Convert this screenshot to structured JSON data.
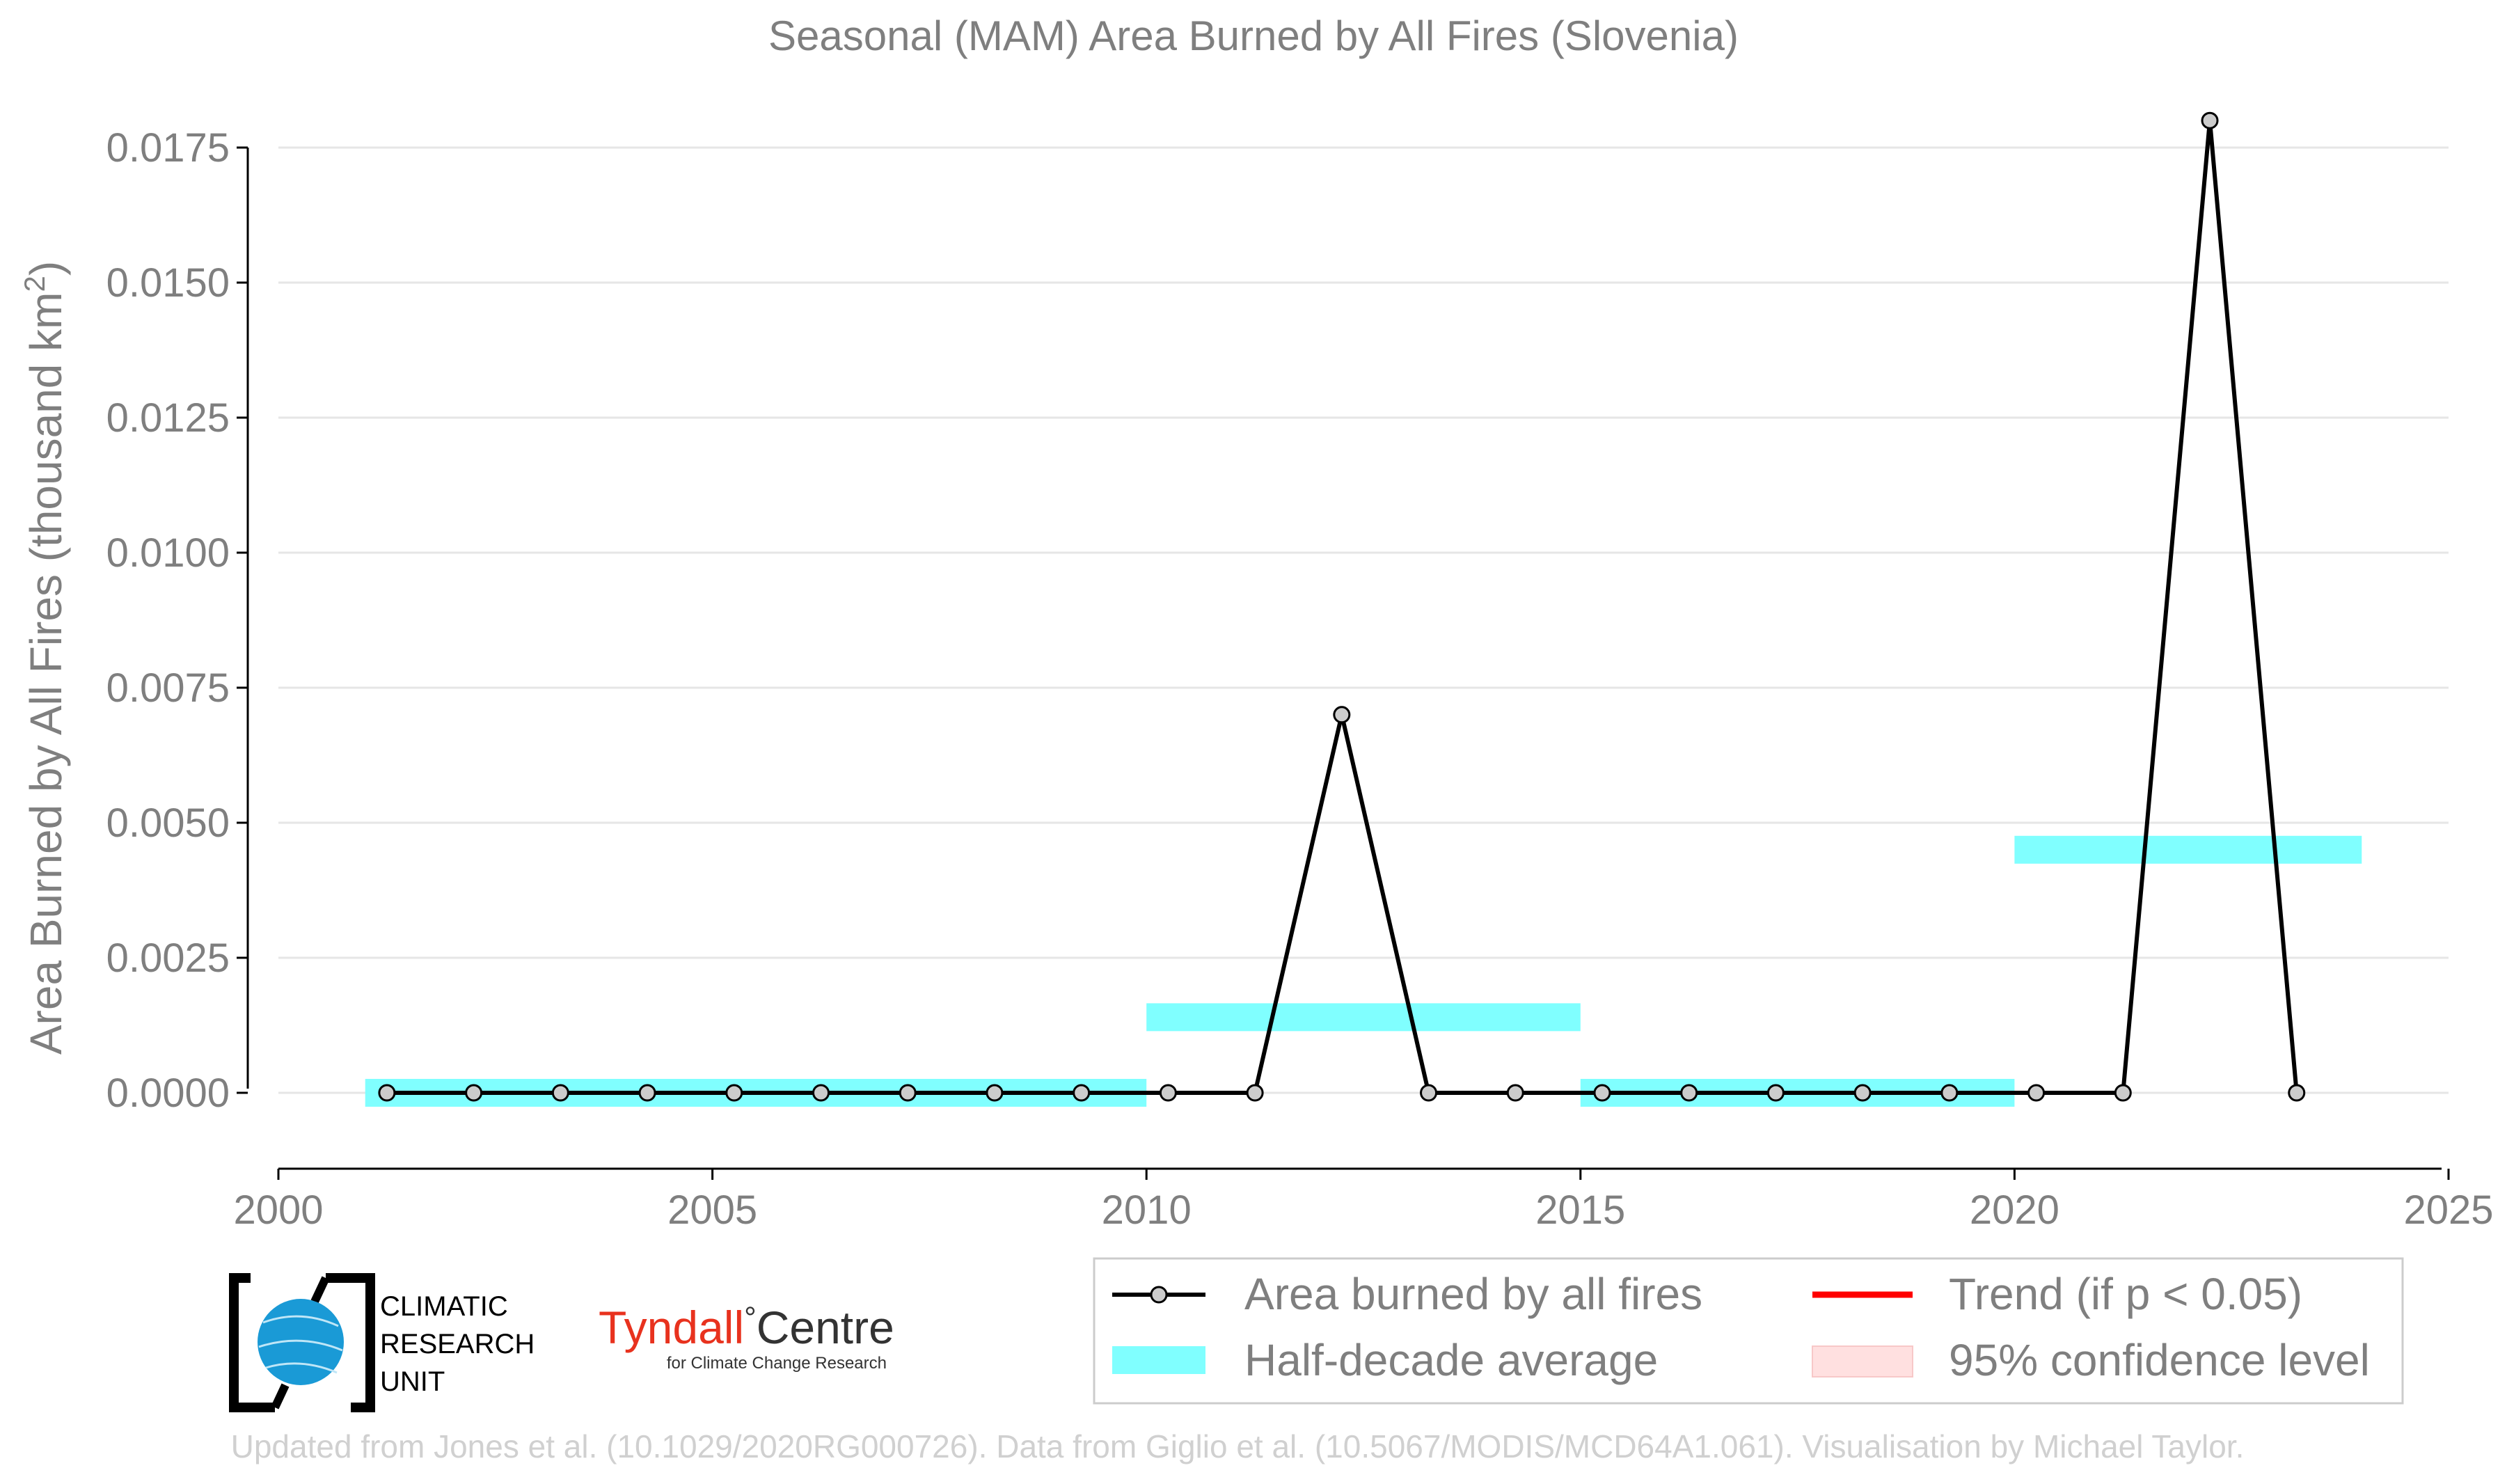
{
  "chart_data": {
    "type": "line",
    "title": "Seasonal (MAM) Area Burned by All Fires (Slovenia)",
    "ylabel_main": "Area Burned by All Fires (thousand km",
    "ylabel_sup": "2",
    "ylabel_close": ")",
    "xlabel": "",
    "xlim": [
      2000,
      2025
    ],
    "ylim": [
      -0.00145,
      0.0185
    ],
    "x_ticks": [
      2000,
      2005,
      2010,
      2015,
      2020,
      2025
    ],
    "y_ticks": [
      "0.0000",
      "0.0025",
      "0.0050",
      "0.0075",
      "0.0100",
      "0.0125",
      "0.0150",
      "0.0175"
    ],
    "grid": "horizontal",
    "series": [
      {
        "name": "Area burned by all fires",
        "color": "#000000",
        "x": [
          2001.25,
          2002.25,
          2003.25,
          2004.25,
          2005.25,
          2006.25,
          2007.25,
          2008.25,
          2009.25,
          2010.25,
          2011.25,
          2012.25,
          2013.25,
          2014.25,
          2015.25,
          2016.25,
          2017.25,
          2018.25,
          2019.25,
          2020.25,
          2021.25,
          2022.25,
          2023.25
        ],
        "values": [
          0,
          0,
          0,
          0,
          0,
          0,
          0,
          0,
          0,
          0,
          0,
          0.007,
          0,
          0,
          0,
          0,
          0,
          0,
          0,
          0,
          0,
          0.018,
          0
        ]
      }
    ],
    "half_decade_average": {
      "name": "Half-decade average",
      "color": "#80ffff",
      "segments": [
        {
          "x0": 2001,
          "x1": 2010,
          "value": 0.0
        },
        {
          "x0": 2010,
          "x1": 2015,
          "value": 0.0014
        },
        {
          "x0": 2015,
          "x1": 2020,
          "value": 0.0
        },
        {
          "x0": 2020,
          "x1": 2024,
          "value": 0.0045
        }
      ]
    },
    "legend": {
      "placement": "bottom-right",
      "entries": [
        {
          "key": "line",
          "label": "Area burned by all fires"
        },
        {
          "key": "trend",
          "label": "Trend (if p < 0.05)",
          "color": "#ff0000"
        },
        {
          "key": "band",
          "label": "Half-decade average"
        },
        {
          "key": "ci",
          "label": "95% confidence level",
          "color": "#ffe0e0"
        }
      ]
    }
  },
  "logos": {
    "cru_line1": "CLIMATIC",
    "cru_line2": "RESEARCH",
    "cru_line3": "UNIT",
    "tyndall_name": "Tyndall",
    "tyndall_degree": "°",
    "tyndall_centre": "Centre",
    "tyndall_sub": "for Climate Change Research"
  },
  "footer": "Updated from Jones et al. (10.1029/2020RG000726). Data from Giglio et al. (10.5067/MODIS/MCD64A1.061). Visualisation by Michael Taylor."
}
